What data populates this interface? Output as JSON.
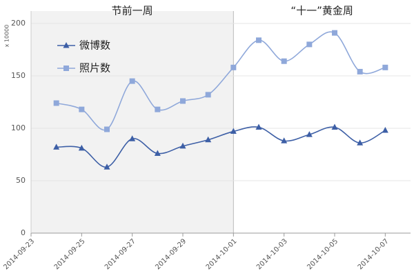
{
  "chart_data": {
    "type": "line",
    "y_unit": "x 10000",
    "periods": [
      {
        "label": "节前一周",
        "start": "2014-09-23",
        "end": "2014-10-01",
        "color": "#f2f2f2"
      },
      {
        "label": "“十一”黄金周",
        "start": "2014-10-01",
        "end": "2014-10-08",
        "color": "#ffffff"
      }
    ],
    "x": [
      "2014-09-24",
      "2014-09-25",
      "2014-09-26",
      "2014-09-27",
      "2014-09-28",
      "2014-09-29",
      "2014-09-30",
      "2014-10-01",
      "2014-10-02",
      "2014-10-03",
      "2014-10-04",
      "2014-10-05",
      "2014-10-06",
      "2014-10-07"
    ],
    "series": [
      {
        "name": "微博数",
        "color": "#3d5fa6",
        "marker": "triangle",
        "values": [
          82,
          81,
          63,
          90,
          76,
          83,
          89,
          97,
          101,
          88,
          94,
          101,
          86,
          98
        ]
      },
      {
        "name": "照片数",
        "color": "#8fa8da",
        "marker": "square",
        "values": [
          124,
          118,
          99,
          145,
          118,
          126,
          132,
          158,
          184,
          164,
          180,
          191,
          154,
          158
        ]
      }
    ],
    "xlim": [
      "2014-09-23",
      "2014-10-08"
    ],
    "xticks": [
      "2014-09-23",
      "2014-09-25",
      "2014-09-27",
      "2014-09-29",
      "2014-10-01",
      "2014-10-03",
      "2014-10-05",
      "2014-10-07"
    ],
    "ylim": [
      0,
      200
    ],
    "yticks": [
      0,
      50,
      100,
      150,
      200
    ],
    "grid": true,
    "smooth": true,
    "legend": "upper left"
  }
}
